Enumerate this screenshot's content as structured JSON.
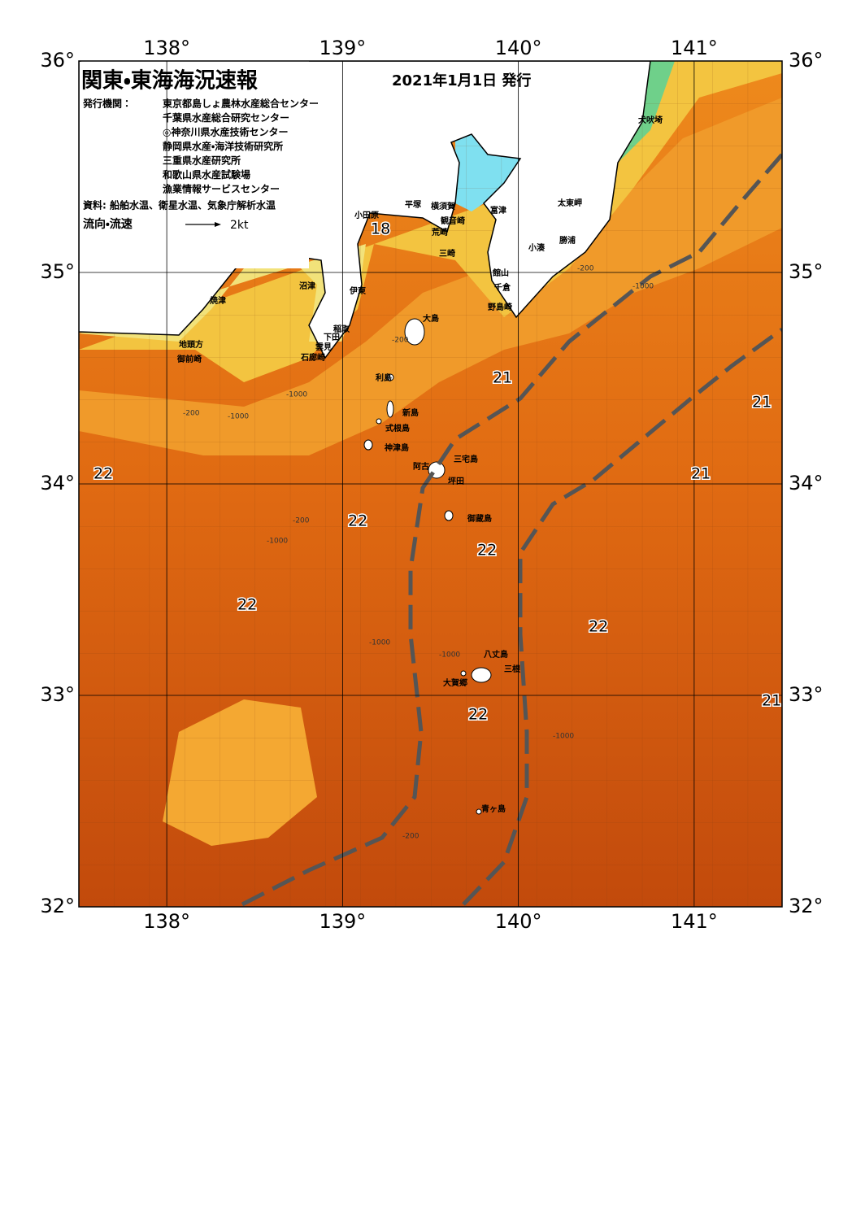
{
  "header": {
    "title": "関東・東海海況速報",
    "date": "2021年1月1日 発行"
  },
  "issuers": {
    "label": "発行機関：",
    "names": [
      "東京都島しょ農林水産総合センター",
      "千葉県水産総合研究センター",
      "◎神奈川県水産技術センター",
      "静岡県水産・海洋技術研究所",
      "三重県水産研究所",
      "和歌山県水産試験場",
      "漁業情報サービスセンター"
    ]
  },
  "source": "資料: 船舶水温、衛星水温、気象庁解析水温",
  "legend": {
    "label": "流向・流速",
    "speed": "2kt"
  },
  "map": {
    "lonlim": [
      137.5,
      141.5
    ],
    "latlim": [
      32,
      36
    ],
    "lonticks": [
      {
        "value": 138,
        "label": "138°"
      },
      {
        "value": 139,
        "label": "139°"
      },
      {
        "value": 140,
        "label": "140°"
      },
      {
        "value": 141,
        "label": "141°"
      }
    ],
    "latticks": [
      {
        "value": 32,
        "label": "32°"
      },
      {
        "value": 33,
        "label": "33°"
      },
      {
        "value": 34,
        "label": "34°"
      },
      {
        "value": 35,
        "label": "35°"
      },
      {
        "value": 36,
        "label": "36°"
      }
    ],
    "places": [
      "小田原",
      "平塚",
      "横須賀",
      "富津",
      "観音崎",
      "荒崎",
      "三崎",
      "太東岬",
      "勝浦",
      "小湊",
      "犬吠埼",
      "館山",
      "千倉",
      "野島崎",
      "大島",
      "沼津",
      "伊東",
      "焼津",
      "稲取",
      "下田",
      "雲見",
      "石廊崎",
      "地頭方",
      "御前崎",
      "利島",
      "新島",
      "式根島",
      "神津島",
      "阿古",
      "三宅島",
      "坪田",
      "御蔵島",
      "八丈島",
      "三根",
      "大賀郷",
      "青ヶ島"
    ],
    "temperatures": [
      18,
      21,
      21,
      21,
      21,
      22,
      22,
      22,
      22,
      22,
      22
    ],
    "depths": [
      -200,
      -1000,
      -200,
      -200,
      -1000,
      -200,
      -1000,
      -1000,
      -1000,
      -1000,
      -1000,
      -200
    ]
  }
}
